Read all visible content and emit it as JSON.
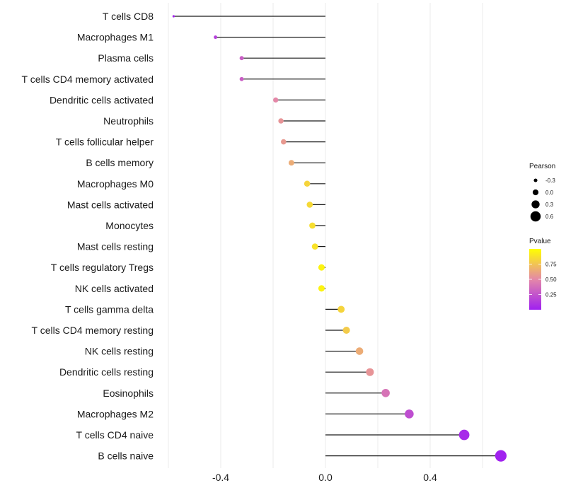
{
  "chart_data": {
    "type": "lollipop",
    "title": "",
    "xlabel": "",
    "ylabel": "",
    "xlim": [
      -0.61,
      0.68
    ],
    "x_ticks": [
      -0.4,
      0.0,
      0.4
    ],
    "x_tick_labels": [
      "-0.4",
      "0.0",
      "0.4"
    ],
    "x_minor_grid": [
      -0.6,
      -0.2,
      0.2,
      0.6
    ],
    "grid": true,
    "categories": [
      "T cells CD8",
      "Macrophages M1",
      "Plasma cells",
      "T cells CD4 memory activated",
      "Dendritic cells activated",
      "Neutrophils",
      "T cells follicular helper",
      "B cells memory",
      "Macrophages M0",
      "Mast cells activated",
      "Monocytes",
      "Mast cells resting",
      "T cells regulatory  Tregs ",
      "NK cells activated",
      "T cells gamma delta",
      "T cells CD4 memory resting",
      "NK cells resting",
      "Dendritic cells resting",
      "Eosinophils",
      "Macrophages M2",
      "T cells CD4 naive",
      "B cells naive"
    ],
    "pearson": [
      -0.58,
      -0.42,
      -0.32,
      -0.32,
      -0.19,
      -0.17,
      -0.16,
      -0.13,
      -0.07,
      -0.06,
      -0.05,
      -0.04,
      -0.015,
      -0.015,
      0.06,
      0.08,
      0.13,
      0.17,
      0.23,
      0.32,
      0.53,
      0.67
    ],
    "pvalue": [
      0.02,
      0.15,
      0.3,
      0.3,
      0.5,
      0.55,
      0.57,
      0.65,
      0.82,
      0.84,
      0.86,
      0.88,
      0.95,
      0.95,
      0.82,
      0.78,
      0.65,
      0.55,
      0.4,
      0.22,
      0.05,
      0.01
    ],
    "legend": {
      "placement": "right",
      "size_title": "Pearson",
      "size_breaks": [
        -0.3,
        0.0,
        0.3,
        0.6
      ],
      "size_labels": [
        "-0.3",
        "0.0",
        "0.3",
        "0.6"
      ],
      "color_title": "Pvalue",
      "color_breaks": [
        0.25,
        0.5,
        0.75
      ],
      "color_labels": [
        "0.25",
        "0.50",
        "0.75"
      ],
      "color_low": "#a020f0",
      "color_mid": "#e488a8",
      "color_high": "#ffff00",
      "pvalue_range": [
        0.0,
        1.0
      ]
    }
  }
}
